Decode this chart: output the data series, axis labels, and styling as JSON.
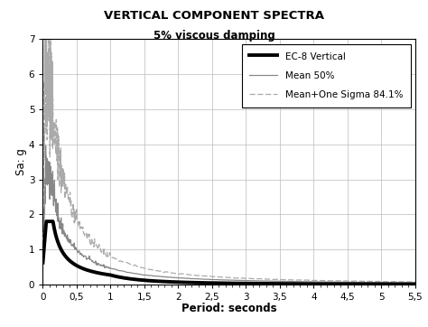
{
  "title": "VERTICAL COMPONENT SPECTRA",
  "subtitle": "5% viscous damping",
  "xlabel": "Period: seconds",
  "ylabel": "Sa: g",
  "xlim": [
    0,
    5.5
  ],
  "ylim": [
    0,
    7
  ],
  "xticks": [
    0,
    0.5,
    1,
    1.5,
    2,
    2.5,
    3,
    3.5,
    4,
    4.5,
    5,
    5.5
  ],
  "yticks": [
    0,
    1,
    2,
    3,
    4,
    5,
    6,
    7
  ],
  "xtick_labels": [
    "0",
    "0,5",
    "1",
    "1,5",
    "2",
    "2,5",
    "3",
    "3,5",
    "4",
    "4,5",
    "5",
    "5,5"
  ],
  "legend_labels": [
    "EC-8 Vertical",
    "Mean 50%",
    "Mean+One Sigma 84.1%"
  ],
  "bg_color": "#ffffff",
  "grid_color": "#bbbbbb",
  "ec8_color": "#000000",
  "mean50_color": "#888888",
  "meansigma_color": "#aaaaaa"
}
